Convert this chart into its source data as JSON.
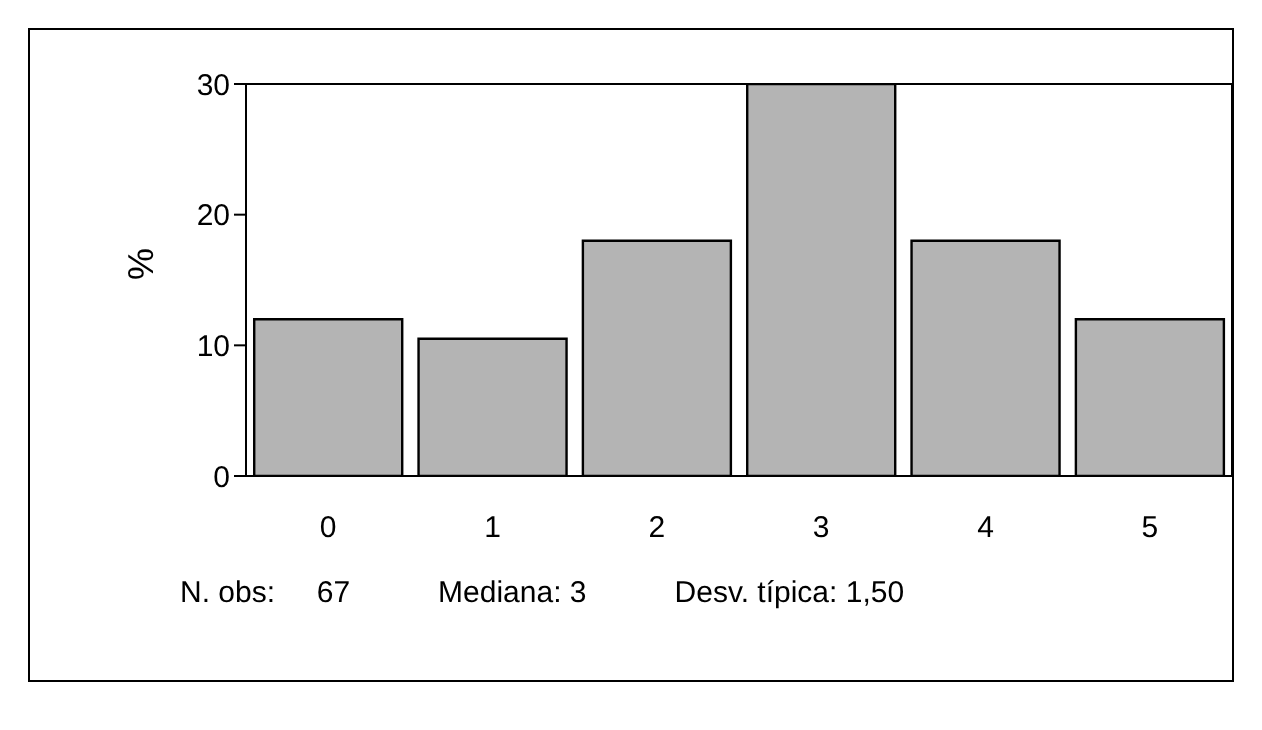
{
  "chart_data": {
    "type": "bar",
    "ylabel": "%",
    "categories": [
      "0",
      "1",
      "2",
      "3",
      "4",
      "5"
    ],
    "values": [
      12,
      10.5,
      18,
      30,
      18,
      12
    ],
    "color": "#b4b4b4",
    "ylim": [
      0,
      30
    ],
    "yticks": [
      0,
      10,
      20,
      30
    ],
    "annotations": [
      "N. obs:     67",
      "Mediana: 3",
      "Desv. típica: 1,50"
    ]
  }
}
